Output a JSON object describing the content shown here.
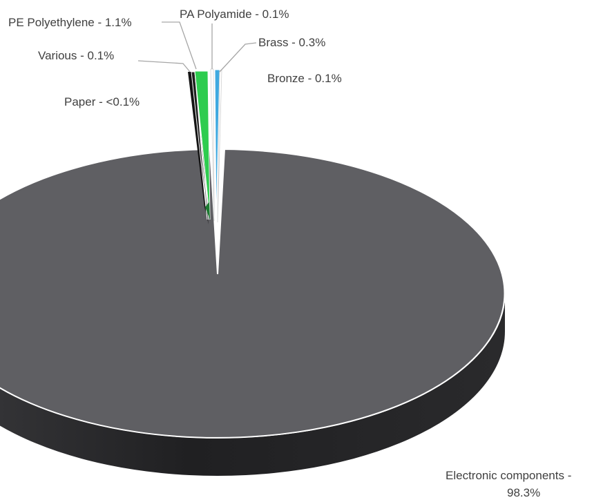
{
  "chart_data": {
    "type": "pie",
    "style": "3d-exploded",
    "title": "",
    "slices": [
      {
        "name": "Electronic components",
        "value": 98.3,
        "label": "Electronic components -",
        "label2": "98.3%",
        "color": "#5f5f63"
      },
      {
        "name": "Paper",
        "value": 0.05,
        "label": "Paper - <0.1%",
        "color": "#1f1f1f"
      },
      {
        "name": "Various",
        "value": 0.1,
        "label": "Various - 0.1%",
        "color": "#141414"
      },
      {
        "name": "PE Polyethylene",
        "value": 1.1,
        "label": "PE Polyethylene - 1.1%",
        "color": "#2ecc4f"
      },
      {
        "name": "PA Polyamide",
        "value": 0.1,
        "label": "PA Polyamide - 0.1%",
        "color": "#ffffff"
      },
      {
        "name": "Brass",
        "value": 0.3,
        "label": "Brass - 0.3%",
        "color": "#3fa9e0"
      },
      {
        "name": "Bronze",
        "value": 0.1,
        "label": "Bronze - 0.1%",
        "color": "#ffffff"
      }
    ]
  }
}
